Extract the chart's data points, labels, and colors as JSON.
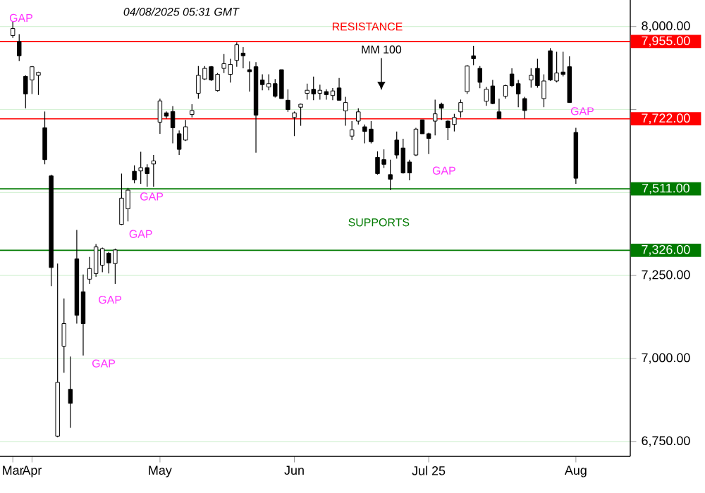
{
  "chart_data": {
    "type": "candlestick",
    "categories": [
      "Mar",
      null,
      null,
      "Apr",
      null,
      null,
      null,
      null,
      null,
      null,
      null,
      null,
      null,
      null,
      null,
      null,
      null,
      null,
      null,
      null,
      null,
      null,
      null,
      "May",
      null,
      null,
      null,
      null,
      null,
      null,
      null,
      null,
      null,
      null,
      null,
      null,
      null,
      null,
      null,
      null,
      null,
      null,
      null,
      null,
      "Jun",
      null,
      null,
      null,
      null,
      null,
      null,
      null,
      null,
      null,
      null,
      null,
      null,
      null,
      null,
      null,
      null,
      null,
      null,
      null,
      null,
      "Jul 25",
      null,
      null,
      null,
      null,
      null,
      null,
      null,
      null,
      null,
      null,
      null,
      null,
      null,
      null,
      null,
      null,
      null,
      null,
      null,
      null,
      null,
      null,
      "Aug"
    ],
    "ohlc": [
      [
        7973,
        8016,
        7966,
        7994
      ],
      [
        7955,
        7977,
        7896,
        7912
      ],
      [
        7850,
        7853,
        7754,
        7797
      ],
      [
        7839,
        7881,
        7797,
        7879
      ],
      [
        7853,
        7864,
        7794,
        7862
      ],
      [
        7695,
        7744,
        7585,
        7599
      ],
      [
        7550,
        7554,
        7218,
        7274
      ],
      [
        6766,
        7286,
        6763,
        6928
      ],
      [
        7037,
        7181,
        6957,
        7105
      ],
      [
        6907,
        7006,
        6791,
        6865
      ],
      [
        7300,
        7387,
        7105,
        7130
      ],
      [
        7201,
        7253,
        7009,
        7105
      ],
      [
        7239,
        7306,
        7225,
        7271
      ],
      [
        7256,
        7345,
        7246,
        7336
      ],
      [
        7281,
        7334,
        7260,
        7331
      ],
      [
        7317,
        7321,
        7256,
        7288
      ],
      [
        7286,
        7331,
        7225,
        7327
      ],
      [
        7404,
        7557,
        7402,
        7483
      ],
      [
        7451,
        7514,
        7413,
        7507
      ],
      [
        7564,
        7582,
        7528,
        7538
      ],
      [
        7565,
        7623,
        7526,
        7575
      ],
      [
        7575,
        7585,
        7517,
        7557
      ],
      [
        7586,
        7613,
        7517,
        7595
      ],
      [
        7712,
        7783,
        7677,
        7776
      ],
      [
        7740,
        7744,
        7723,
        7730
      ],
      [
        7744,
        7760,
        7648,
        7695
      ],
      [
        7677,
        7687,
        7613,
        7630
      ],
      [
        7658,
        7719,
        7655,
        7698
      ],
      [
        7735,
        7766,
        7726,
        7747
      ],
      [
        7799,
        7881,
        7783,
        7853
      ],
      [
        7842,
        7881,
        7839,
        7874
      ],
      [
        7879,
        7881,
        7836,
        7839
      ],
      [
        7807,
        7860,
        7804,
        7856
      ],
      [
        7874,
        7917,
        7860,
        7888
      ],
      [
        7856,
        7903,
        7831,
        7886
      ],
      [
        7898,
        7952,
        7879,
        7945
      ],
      [
        7920,
        7938,
        7874,
        7912
      ],
      [
        7870,
        7895,
        7804,
        7864
      ],
      [
        7879,
        7893,
        7620,
        7733
      ],
      [
        7839,
        7856,
        7808,
        7825
      ],
      [
        7818,
        7856,
        7808,
        7828
      ],
      [
        7828,
        7842,
        7786,
        7790
      ],
      [
        7870,
        7870,
        7783,
        7783
      ],
      [
        7778,
        7811,
        7743,
        7750
      ],
      [
        7726,
        7744,
        7670,
        7740
      ],
      [
        7757,
        7768,
        7701,
        7766
      ],
      [
        7799,
        7828,
        7780,
        7808
      ],
      [
        7811,
        7849,
        7778,
        7797
      ],
      [
        7799,
        7825,
        7780,
        7808
      ],
      [
        7804,
        7811,
        7780,
        7795
      ],
      [
        7792,
        7815,
        7778,
        7806
      ],
      [
        7815,
        7845,
        7778,
        7778
      ],
      [
        7746,
        7788,
        7701,
        7771
      ],
      [
        7670,
        7715,
        7658,
        7689
      ],
      [
        7715,
        7754,
        7705,
        7743
      ],
      [
        7698,
        7705,
        7648,
        7684
      ],
      [
        7691,
        7715,
        7648,
        7653
      ],
      [
        7606,
        7624,
        7554,
        7557
      ],
      [
        7599,
        7630,
        7574,
        7585
      ],
      [
        7554,
        7599,
        7507,
        7540
      ],
      [
        7658,
        7684,
        7602,
        7613
      ],
      [
        7634,
        7662,
        7557,
        7559
      ],
      [
        7592,
        7599,
        7537,
        7559
      ],
      [
        7613,
        7695,
        7610,
        7691
      ],
      [
        7719,
        7719,
        7677,
        7677
      ],
      [
        7677,
        7680,
        7616,
        7663
      ],
      [
        7715,
        7780,
        7672,
        7737
      ],
      [
        7766,
        7771,
        7719,
        7754
      ],
      [
        7715,
        7718,
        7658,
        7695
      ],
      [
        7705,
        7737,
        7684,
        7726
      ],
      [
        7743,
        7780,
        7726,
        7771
      ],
      [
        7804,
        7884,
        7797,
        7881
      ],
      [
        7912,
        7942,
        7884,
        7903
      ],
      [
        7874,
        7881,
        7814,
        7832
      ],
      [
        7775,
        7818,
        7761,
        7811
      ],
      [
        7821,
        7839,
        7766,
        7768
      ],
      [
        7743,
        7783,
        7723,
        7723
      ],
      [
        7790,
        7825,
        7783,
        7822
      ],
      [
        7857,
        7874,
        7818,
        7822
      ],
      [
        7828,
        7839,
        7757,
        7797
      ],
      [
        7783,
        7788,
        7723,
        7747
      ],
      [
        7839,
        7874,
        7816,
        7853
      ],
      [
        7874,
        7903,
        7816,
        7822
      ],
      [
        7783,
        7856,
        7757,
        7836
      ],
      [
        7927,
        7935,
        7836,
        7839
      ],
      [
        7836,
        7924,
        7832,
        7860
      ],
      [
        7863,
        7924,
        7850,
        7856
      ],
      [
        7879,
        7910,
        7771,
        7771
      ],
      [
        7681,
        7695,
        7526,
        7543
      ]
    ],
    "ylim": [
      6705,
      8080
    ],
    "yticks": [
      {
        "value": 6750,
        "label": "6,750.00"
      },
      {
        "value": 7000,
        "label": "7,000.00"
      },
      {
        "value": 7250,
        "label": "7,250.00"
      },
      {
        "value": 7500,
        "label": null
      },
      {
        "value": 7750,
        "label": null
      },
      {
        "value": 8000,
        "label": "8,000.00"
      }
    ],
    "grid": "y",
    "ref_lines": [
      {
        "axis": "y",
        "value": 7955,
        "label": "7,955.00",
        "color": "#ff0000"
      },
      {
        "axis": "y",
        "value": 7722,
        "label": "7,722.00",
        "color": "#ff0000"
      },
      {
        "axis": "y",
        "value": 7511,
        "label": "7,511.00",
        "color": "#007a00"
      },
      {
        "axis": "y",
        "value": 7326,
        "label": "7,326.00",
        "color": "#007a00"
      }
    ],
    "annotations": [
      "04/08/2025 05:31 GMT",
      "RESISTANCE",
      "MM 100",
      "SUPPORTS",
      "GAP",
      "GAP",
      "GAP",
      "GAP",
      "GAP",
      "GAP",
      "GAP"
    ]
  }
}
